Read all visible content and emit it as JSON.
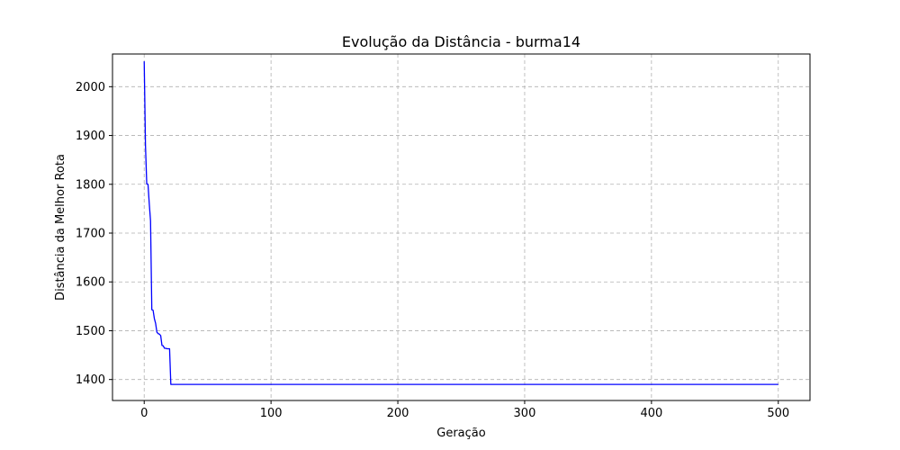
{
  "chart_data": {
    "type": "line",
    "title": "Evolução da Distância - burma14",
    "xlabel": "Geração",
    "ylabel": "Distância da Melhor Rota",
    "xlim": [
      -25,
      525
    ],
    "ylim": [
      1357,
      2067
    ],
    "xticks": [
      0,
      100,
      200,
      300,
      400,
      500
    ],
    "yticks": [
      1400,
      1500,
      1600,
      1700,
      1800,
      1900,
      2000
    ],
    "grid": true,
    "line_color": "#0000ff",
    "grid_color": "#b0b0b0",
    "series": [
      {
        "x": [
          0,
          1,
          2,
          3,
          4,
          5,
          6,
          7,
          8,
          9,
          10,
          11,
          12,
          13,
          14,
          15,
          16,
          17,
          18,
          19,
          20,
          21,
          500
        ],
        "y": [
          2052,
          1880,
          1801,
          1800,
          1760,
          1725,
          1543,
          1542,
          1525,
          1515,
          1497,
          1494,
          1493,
          1490,
          1470,
          1469,
          1464,
          1464,
          1463,
          1463,
          1463,
          1390,
          1390
        ]
      }
    ]
  }
}
